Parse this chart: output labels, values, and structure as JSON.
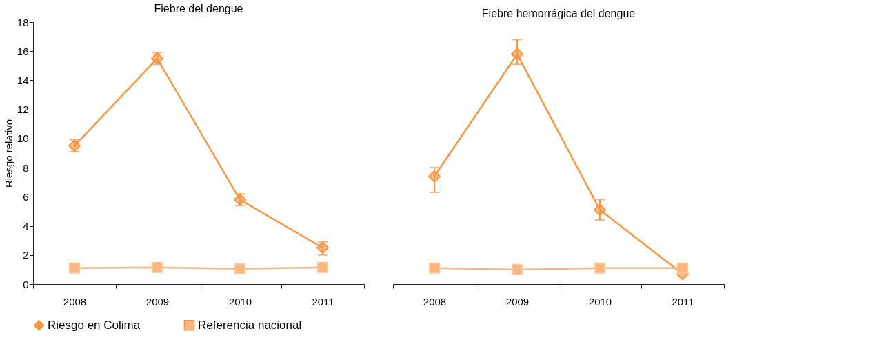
{
  "chart_data": [
    {
      "type": "line",
      "title": "Fiebre del dengue",
      "ylabel": "Riesgo relativo",
      "categories": [
        "2008",
        "2009",
        "2010",
        "2011"
      ],
      "ylim": [
        0,
        18
      ],
      "yticks": [
        0,
        2,
        4,
        6,
        8,
        10,
        12,
        14,
        16,
        18
      ],
      "grid": false,
      "legend": "bottom",
      "series": [
        {
          "name": "Riesgo en Colima",
          "color": "#f79646",
          "marker": "diamond",
          "values": [
            9.5,
            15.5,
            5.8,
            2.5
          ],
          "errors": [
            [
              9.1,
              9.9
            ],
            [
              15.1,
              15.9
            ],
            [
              5.4,
              6.2
            ],
            [
              2.0,
              2.9
            ]
          ]
        },
        {
          "name": "Referencia nacional",
          "color": "#fbb57e",
          "marker": "square",
          "values": [
            1.1,
            1.15,
            1.05,
            1.15
          ]
        }
      ]
    },
    {
      "type": "line",
      "title": "Fiebre hemorrágica del dengue",
      "categories": [
        "2008",
        "2009",
        "2010",
        "2011"
      ],
      "ylim": [
        0,
        18
      ],
      "yticks": [
        0,
        2,
        4,
        6,
        8,
        10,
        12,
        14,
        16,
        18
      ],
      "grid": false,
      "tick_labels": "x",
      "series": [
        {
          "name": "Riesgo en Colima",
          "color": "#f79646",
          "marker": "diamond",
          "values": [
            7.4,
            15.8,
            5.1,
            0.7
          ],
          "errors": [
            [
              6.3,
              8.0
            ],
            [
              15.1,
              16.8
            ],
            [
              4.4,
              5.8
            ],
            null
          ]
        },
        {
          "name": "Referencia nacional",
          "color": "#fbb57e",
          "marker": "square",
          "values": [
            1.1,
            1.0,
            1.1,
            1.1
          ]
        }
      ]
    }
  ]
}
